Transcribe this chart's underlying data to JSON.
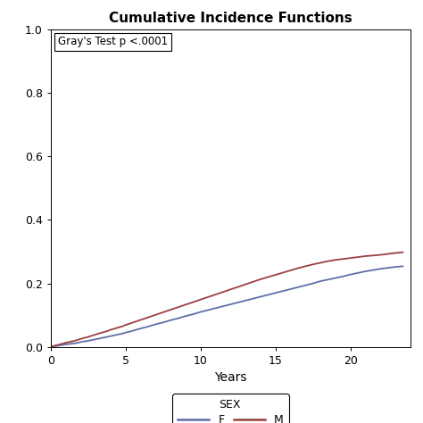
{
  "title": "Cumulative Incidence Functions",
  "xlabel": "Years",
  "ylabel": "",
  "annotation": "Gray's Test p <.0001",
  "xlim": [
    0,
    24
  ],
  "ylim": [
    0,
    1.0
  ],
  "xticks": [
    0,
    5,
    10,
    15,
    20
  ],
  "yticks": [
    0.0,
    0.2,
    0.4,
    0.6,
    0.8,
    1.0
  ],
  "female_color": "#5E6FA8",
  "male_color": "#9B4040",
  "legend_label_sex": "SEX",
  "legend_label_f": "F",
  "legend_label_m": "M",
  "female_x": [
    0,
    0.2,
    0.4,
    0.6,
    0.8,
    1.0,
    1.2,
    1.4,
    1.6,
    1.8,
    2.0,
    2.2,
    2.4,
    2.6,
    2.8,
    3.0,
    3.2,
    3.5,
    3.8,
    4.0,
    4.3,
    4.5,
    4.8,
    5.0,
    5.5,
    6.0,
    6.5,
    7.0,
    7.5,
    8.0,
    8.5,
    9.0,
    9.5,
    10.0,
    10.5,
    11.0,
    11.5,
    12.0,
    12.5,
    13.0,
    13.5,
    14.0,
    14.5,
    15.0,
    15.5,
    16.0,
    16.5,
    17.0,
    17.5,
    18.0,
    18.5,
    19.0,
    19.5,
    20.0,
    20.5,
    21.0,
    21.5,
    22.0,
    22.5,
    23.0,
    23.5
  ],
  "female_y": [
    0.0,
    0.002,
    0.003,
    0.005,
    0.006,
    0.008,
    0.009,
    0.01,
    0.011,
    0.013,
    0.015,
    0.017,
    0.018,
    0.02,
    0.022,
    0.024,
    0.026,
    0.029,
    0.032,
    0.034,
    0.037,
    0.039,
    0.042,
    0.045,
    0.051,
    0.058,
    0.064,
    0.071,
    0.077,
    0.084,
    0.09,
    0.097,
    0.103,
    0.11,
    0.116,
    0.122,
    0.128,
    0.134,
    0.14,
    0.146,
    0.152,
    0.158,
    0.164,
    0.17,
    0.176,
    0.182,
    0.188,
    0.194,
    0.2,
    0.207,
    0.212,
    0.217,
    0.222,
    0.228,
    0.233,
    0.238,
    0.242,
    0.246,
    0.249,
    0.252,
    0.254
  ],
  "male_x": [
    0,
    0.2,
    0.4,
    0.6,
    0.8,
    1.0,
    1.2,
    1.4,
    1.6,
    1.8,
    2.0,
    2.2,
    2.4,
    2.6,
    2.8,
    3.0,
    3.2,
    3.5,
    3.8,
    4.0,
    4.3,
    4.5,
    4.8,
    5.0,
    5.5,
    6.0,
    6.5,
    7.0,
    7.5,
    8.0,
    8.5,
    9.0,
    9.5,
    10.0,
    10.5,
    11.0,
    11.5,
    12.0,
    12.5,
    13.0,
    13.5,
    14.0,
    14.5,
    15.0,
    15.5,
    16.0,
    16.5,
    17.0,
    17.5,
    18.0,
    18.5,
    19.0,
    19.5,
    20.0,
    20.5,
    21.0,
    21.5,
    22.0,
    22.5,
    23.0,
    23.5
  ],
  "male_y": [
    0.0,
    0.003,
    0.005,
    0.008,
    0.01,
    0.013,
    0.015,
    0.017,
    0.019,
    0.022,
    0.025,
    0.028,
    0.03,
    0.033,
    0.036,
    0.039,
    0.042,
    0.046,
    0.05,
    0.054,
    0.058,
    0.061,
    0.065,
    0.069,
    0.077,
    0.085,
    0.093,
    0.101,
    0.109,
    0.117,
    0.125,
    0.133,
    0.141,
    0.149,
    0.157,
    0.165,
    0.173,
    0.181,
    0.189,
    0.197,
    0.205,
    0.213,
    0.22,
    0.227,
    0.234,
    0.241,
    0.248,
    0.254,
    0.26,
    0.265,
    0.27,
    0.274,
    0.277,
    0.28,
    0.283,
    0.286,
    0.288,
    0.29,
    0.293,
    0.296,
    0.298
  ]
}
